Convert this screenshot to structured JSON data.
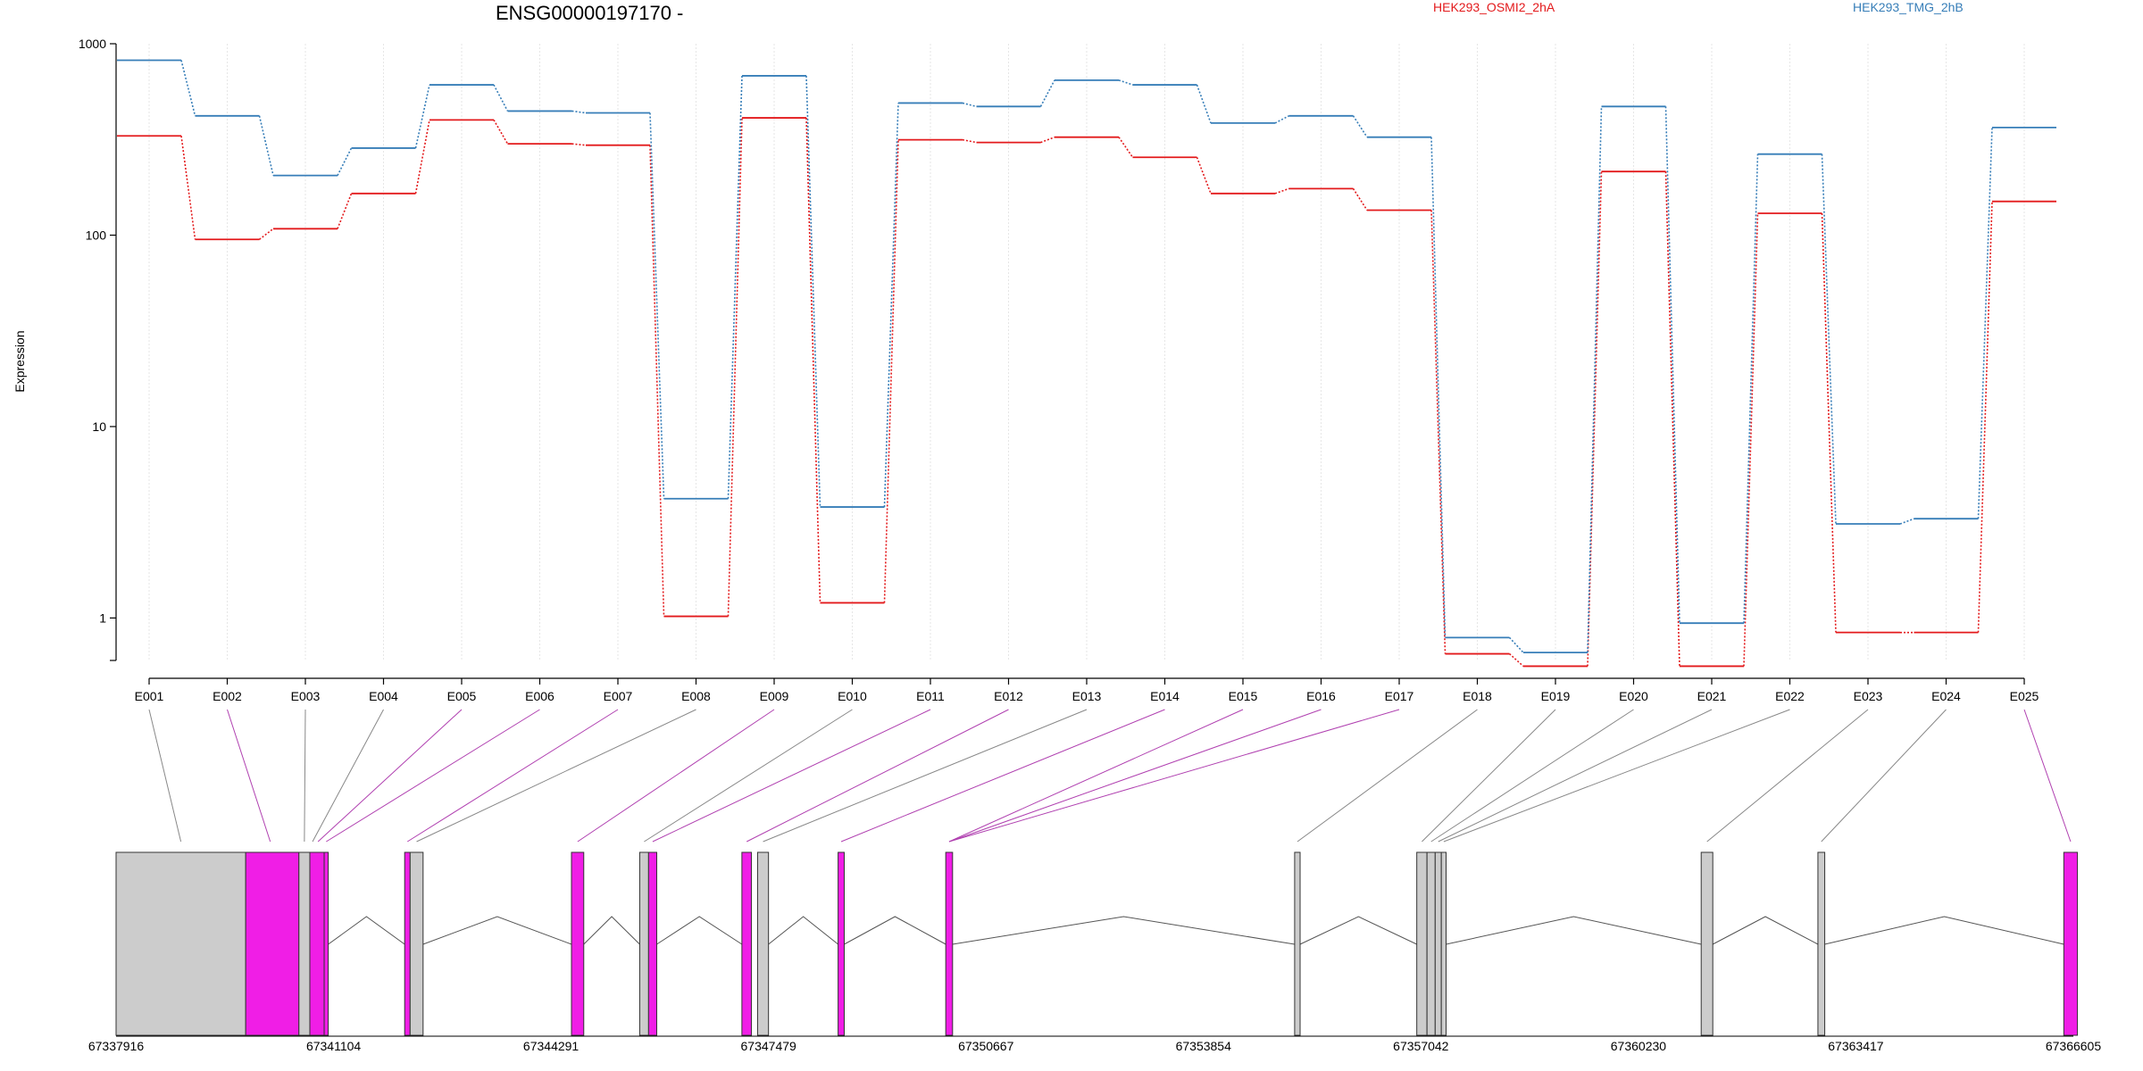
{
  "chart_data": {
    "type": "line",
    "title": "ENSG00000197170 -",
    "ylabel": "Expression",
    "xlabel": "",
    "yscale": "log",
    "ylim": [
      0.6,
      1000
    ],
    "yticks": [
      1,
      10,
      100,
      1000
    ],
    "ytick_labels": [
      "1",
      "10",
      "100",
      "1000"
    ],
    "grid": "vertical, light",
    "legend_placement": "top-right",
    "categories": [
      "E001",
      "E002",
      "E003",
      "E004",
      "E005",
      "E006",
      "E007",
      "E008",
      "E009",
      "E010",
      "E011",
      "E012",
      "E013",
      "E014",
      "E015",
      "E016",
      "E017",
      "E018",
      "E019",
      "E020",
      "E021",
      "E022",
      "E023",
      "E024",
      "E025"
    ],
    "series": [
      {
        "name": "HEK293_OSMI2_2hA",
        "color": "#e31a1c",
        "values": [
          330,
          95,
          108,
          165,
          400,
          300,
          295,
          1.02,
          410,
          1.2,
          315,
          305,
          325,
          255,
          165,
          175,
          135,
          0.65,
          0.56,
          215,
          0.56,
          130,
          0.84,
          0.84,
          150
        ]
      },
      {
        "name": "HEK293_TMG_2hB",
        "color": "#377eb8",
        "values": [
          820,
          420,
          205,
          285,
          610,
          445,
          435,
          4.2,
          680,
          3.8,
          490,
          470,
          645,
          610,
          385,
          420,
          325,
          0.79,
          0.66,
          470,
          0.94,
          265,
          3.1,
          3.3,
          365
        ]
      }
    ],
    "gene_model": {
      "coordinate_ticks": [
        "67337916",
        "67341104",
        "67344291",
        "67347479",
        "67350667",
        "67353854",
        "67357042",
        "67360230",
        "67363417",
        "67366605"
      ],
      "coordinate_range": [
        67337916,
        67366605
      ],
      "highlight_color": "#f01ee6",
      "exon_color": "#cccccc",
      "exons": [
        {
          "s": 67337916,
          "e": 67339816,
          "hl": false
        },
        {
          "s": 67339816,
          "e": 67340596,
          "hl": true
        },
        {
          "s": 67340596,
          "e": 67340756,
          "hl": false
        },
        {
          "s": 67340756,
          "e": 67340966,
          "hl": true
        },
        {
          "s": 67340966,
          "e": 67341026,
          "hl": true
        },
        {
          "s": 67342146,
          "e": 67342226,
          "hl": true
        },
        {
          "s": 67342226,
          "e": 67342416,
          "hl": false
        },
        {
          "s": 67344591,
          "e": 67344771,
          "hl": true
        },
        {
          "s": 67345591,
          "e": 67345721,
          "hl": false
        },
        {
          "s": 67345721,
          "e": 67345841,
          "hl": true
        },
        {
          "s": 67347089,
          "e": 67347229,
          "hl": true
        },
        {
          "s": 67347319,
          "e": 67347479,
          "hl": false
        },
        {
          "s": 67348499,
          "e": 67348589,
          "hl": true
        },
        {
          "s": 67350077,
          "e": 67350177,
          "hl": true
        },
        {
          "s": 67355191,
          "e": 67355271,
          "hl": false
        },
        {
          "s": 67356981,
          "e": 67357131,
          "hl": false
        },
        {
          "s": 67357131,
          "e": 67357251,
          "hl": false
        },
        {
          "s": 67357251,
          "e": 67357341,
          "hl": false
        },
        {
          "s": 67357341,
          "e": 67357411,
          "hl": false
        },
        {
          "s": 67361150,
          "e": 67361320,
          "hl": false
        },
        {
          "s": 67362861,
          "e": 67362961,
          "hl": false
        },
        {
          "s": 67366465,
          "e": 67366665,
          "hl": true
        }
      ],
      "introns": [
        [
          67341026,
          67342146
        ],
        [
          67342416,
          67344591
        ],
        [
          67344771,
          67345591
        ],
        [
          67345841,
          67347089
        ],
        [
          67347479,
          67348499
        ],
        [
          67348589,
          67350077
        ],
        [
          67350177,
          67355191
        ],
        [
          67355271,
          67356981
        ],
        [
          67357411,
          67361150
        ],
        [
          67361320,
          67362861
        ],
        [
          67362961,
          67366465
        ]
      ],
      "feature_map": [
        {
          "bin": "E001",
          "pos": 67338866,
          "hl": false
        },
        {
          "bin": "E002",
          "pos": 67340176,
          "hl": true
        },
        {
          "bin": "E003",
          "pos": 67340676,
          "hl": false
        },
        {
          "bin": "E004",
          "pos": 67340796,
          "hl": false
        },
        {
          "bin": "E005",
          "pos": 67340876,
          "hl": true
        },
        {
          "bin": "E006",
          "pos": 67340996,
          "hl": true
        },
        {
          "bin": "E007",
          "pos": 67342186,
          "hl": true
        },
        {
          "bin": "E008",
          "pos": 67342321,
          "hl": false
        },
        {
          "bin": "E009",
          "pos": 67344681,
          "hl": true
        },
        {
          "bin": "E010",
          "pos": 67345656,
          "hl": false
        },
        {
          "bin": "E011",
          "pos": 67345781,
          "hl": true
        },
        {
          "bin": "E012",
          "pos": 67347159,
          "hl": true
        },
        {
          "bin": "E013",
          "pos": 67347399,
          "hl": false
        },
        {
          "bin": "E014",
          "pos": 67348544,
          "hl": true
        },
        {
          "bin": "E015",
          "pos": 67350127,
          "hl": true
        },
        {
          "bin": "E016",
          "pos": 67350127,
          "hl": true
        },
        {
          "bin": "E017",
          "pos": 67350127,
          "hl": true
        },
        {
          "bin": "E018",
          "pos": 67355231,
          "hl": false
        },
        {
          "bin": "E019",
          "pos": 67357056,
          "hl": false
        },
        {
          "bin": "E020",
          "pos": 67357191,
          "hl": false
        },
        {
          "bin": "E021",
          "pos": 67357296,
          "hl": false
        },
        {
          "bin": "E022",
          "pos": 67357376,
          "hl": false
        },
        {
          "bin": "E023",
          "pos": 67361235,
          "hl": false
        },
        {
          "bin": "E024",
          "pos": 67362911,
          "hl": false
        },
        {
          "bin": "E025",
          "pos": 67366565,
          "hl": true
        }
      ]
    }
  }
}
